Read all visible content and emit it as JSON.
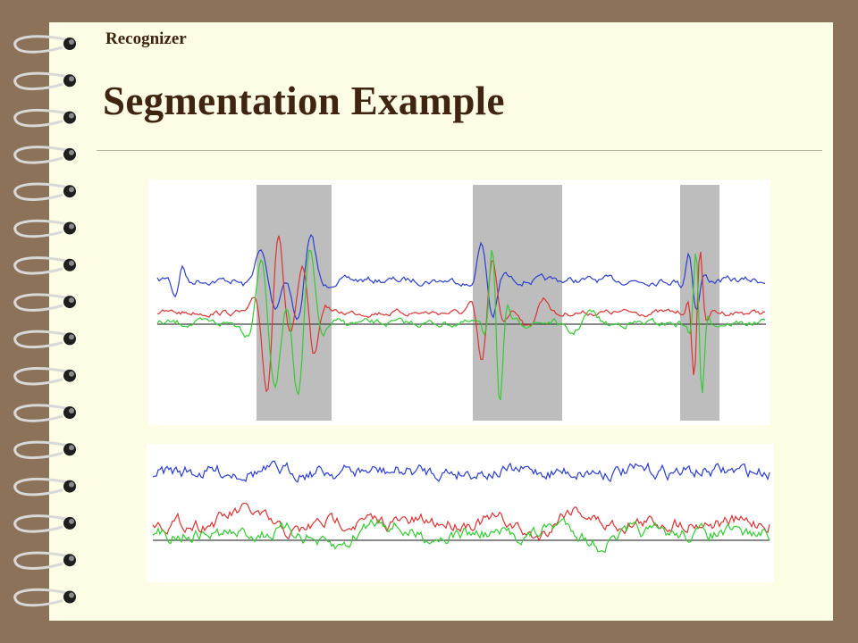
{
  "header": {
    "label": "Recognizer"
  },
  "title": "Segmentation Example"
}
